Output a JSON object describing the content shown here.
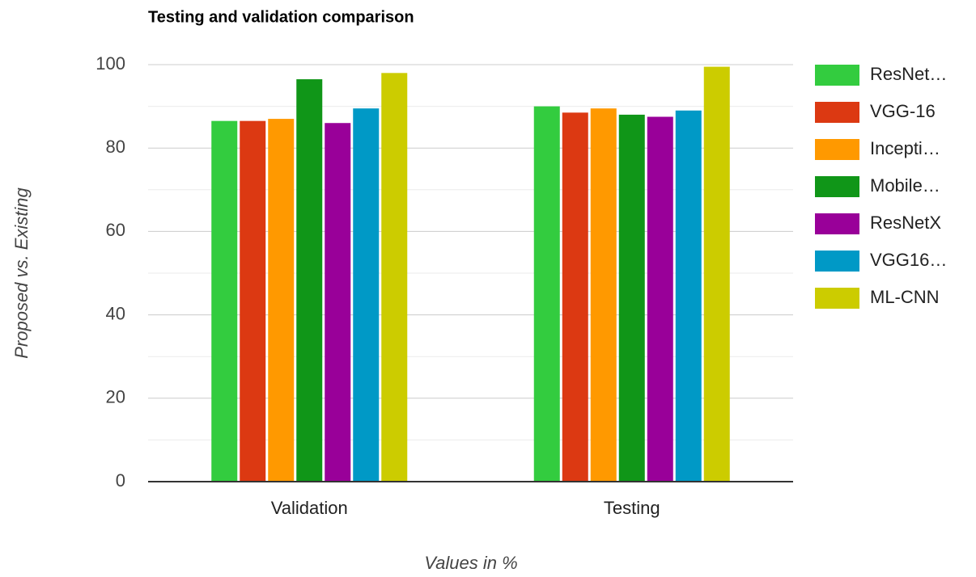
{
  "chart_data": {
    "type": "bar",
    "title": "Testing and validation comparison",
    "x_label": "Values in %",
    "y_label": "Proposed vs. Existing",
    "categories": [
      "Validation",
      "Testing"
    ],
    "series": [
      {
        "name": "ResNet…",
        "color": "#33cc3f",
        "values": [
          86.5,
          90
        ]
      },
      {
        "name": "VGG-16",
        "color": "#dc3912",
        "values": [
          86.5,
          88.5
        ]
      },
      {
        "name": "Incepti…",
        "color": "#ff9900",
        "values": [
          87,
          89.5
        ]
      },
      {
        "name": "Mobile…",
        "color": "#109618",
        "values": [
          96.5,
          88
        ]
      },
      {
        "name": "ResNetX",
        "color": "#990099",
        "values": [
          86,
          87.5
        ]
      },
      {
        "name": "VGG16…",
        "color": "#0099c6",
        "values": [
          89.5,
          89
        ]
      },
      {
        "name": "ML-CNN",
        "color": "#cccc00",
        "values": [
          98,
          99.5
        ]
      }
    ],
    "ylim": [
      0,
      100
    ],
    "yticks": [
      0,
      20,
      40,
      60,
      80,
      100
    ],
    "grid": true,
    "minor_grid": true,
    "legend": "right"
  }
}
